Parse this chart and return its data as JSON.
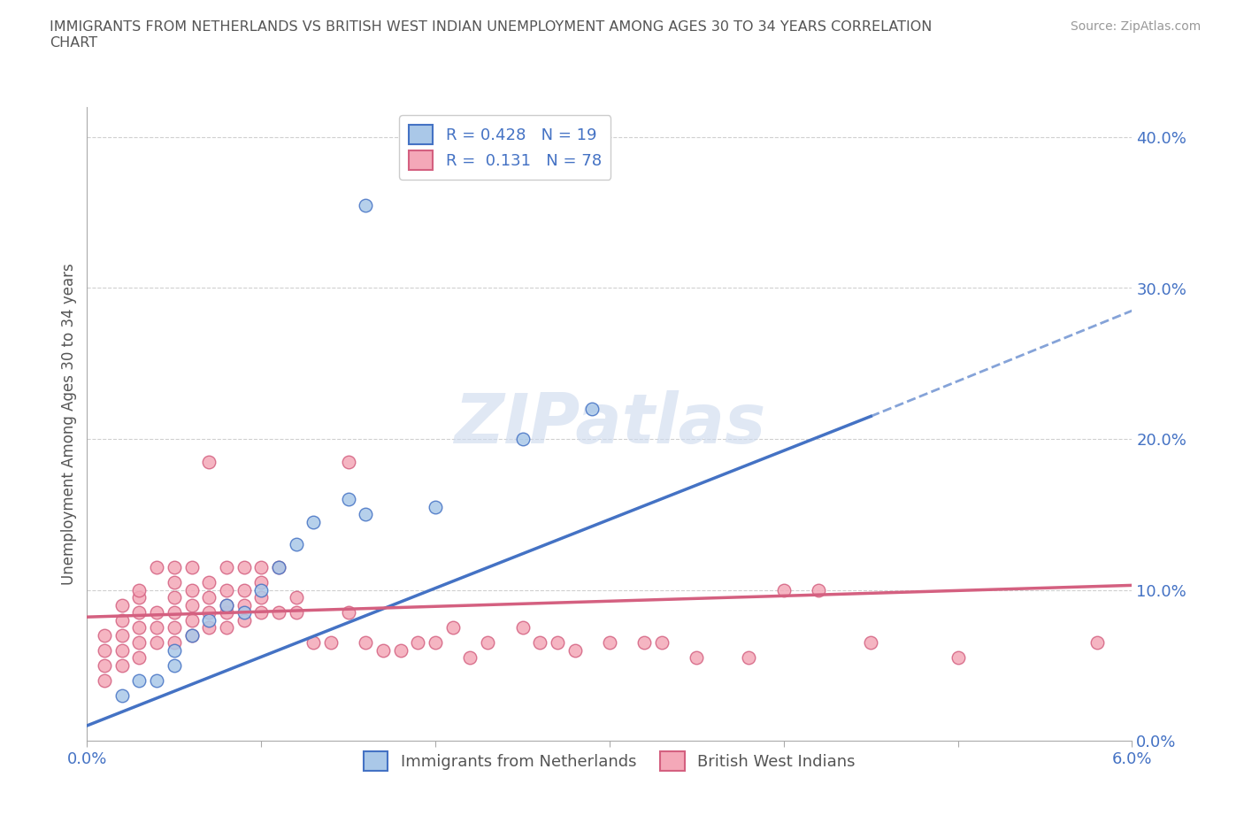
{
  "title": "IMMIGRANTS FROM NETHERLANDS VS BRITISH WEST INDIAN UNEMPLOYMENT AMONG AGES 30 TO 34 YEARS CORRELATION\nCHART",
  "source": "Source: ZipAtlas.com",
  "ylabel": "Unemployment Among Ages 30 to 34 years",
  "xlim": [
    0.0,
    0.06
  ],
  "ylim": [
    0.0,
    0.42
  ],
  "xticks": [
    0.0,
    0.01,
    0.02,
    0.03,
    0.04,
    0.05,
    0.06
  ],
  "xtick_labels": [
    "0.0%",
    "",
    "",
    "",
    "",
    "",
    "6.0%"
  ],
  "ytick_labels": [
    "0.0%",
    "10.0%",
    "20.0%",
    "30.0%",
    "40.0%"
  ],
  "yticks": [
    0.0,
    0.1,
    0.2,
    0.3,
    0.4
  ],
  "R_blue": 0.428,
  "N_blue": 19,
  "R_pink": 0.131,
  "N_pink": 78,
  "blue_color": "#aac8e8",
  "pink_color": "#f4a8b8",
  "blue_line_color": "#4472c4",
  "pink_line_color": "#d46080",
  "axis_color": "#4472c4",
  "grid_color": "#d0d0d0",
  "watermark": "ZIPatlas",
  "blue_line_x0": 0.0,
  "blue_line_y0": 0.01,
  "blue_line_x1": 0.045,
  "blue_line_y1": 0.215,
  "blue_line_solid_end": 0.045,
  "blue_line_x2": 0.06,
  "blue_line_y2": 0.285,
  "pink_line_x0": 0.0,
  "pink_line_y0": 0.082,
  "pink_line_x1": 0.06,
  "pink_line_y1": 0.103,
  "blue_scatter_x": [
    0.002,
    0.003,
    0.004,
    0.005,
    0.005,
    0.006,
    0.007,
    0.008,
    0.009,
    0.01,
    0.011,
    0.012,
    0.013,
    0.015,
    0.016,
    0.02,
    0.025,
    0.029,
    0.016
  ],
  "blue_scatter_y": [
    0.03,
    0.04,
    0.04,
    0.05,
    0.06,
    0.07,
    0.08,
    0.09,
    0.085,
    0.1,
    0.115,
    0.13,
    0.145,
    0.16,
    0.15,
    0.155,
    0.2,
    0.22,
    0.355
  ],
  "pink_scatter_x": [
    0.001,
    0.001,
    0.001,
    0.001,
    0.002,
    0.002,
    0.002,
    0.002,
    0.002,
    0.003,
    0.003,
    0.003,
    0.003,
    0.003,
    0.003,
    0.004,
    0.004,
    0.004,
    0.004,
    0.005,
    0.005,
    0.005,
    0.005,
    0.005,
    0.005,
    0.006,
    0.006,
    0.006,
    0.006,
    0.006,
    0.007,
    0.007,
    0.007,
    0.007,
    0.007,
    0.008,
    0.008,
    0.008,
    0.008,
    0.008,
    0.009,
    0.009,
    0.009,
    0.009,
    0.01,
    0.01,
    0.01,
    0.01,
    0.011,
    0.011,
    0.012,
    0.012,
    0.013,
    0.014,
    0.015,
    0.015,
    0.016,
    0.017,
    0.018,
    0.019,
    0.02,
    0.021,
    0.022,
    0.023,
    0.025,
    0.026,
    0.027,
    0.028,
    0.03,
    0.032,
    0.033,
    0.035,
    0.038,
    0.04,
    0.042,
    0.045,
    0.05,
    0.058
  ],
  "pink_scatter_y": [
    0.04,
    0.05,
    0.06,
    0.07,
    0.05,
    0.06,
    0.07,
    0.08,
    0.09,
    0.055,
    0.065,
    0.075,
    0.085,
    0.095,
    0.1,
    0.065,
    0.075,
    0.085,
    0.115,
    0.065,
    0.075,
    0.085,
    0.095,
    0.105,
    0.115,
    0.07,
    0.08,
    0.09,
    0.1,
    0.115,
    0.075,
    0.085,
    0.095,
    0.105,
    0.185,
    0.075,
    0.085,
    0.09,
    0.1,
    0.115,
    0.08,
    0.09,
    0.1,
    0.115,
    0.085,
    0.095,
    0.105,
    0.115,
    0.085,
    0.115,
    0.085,
    0.095,
    0.065,
    0.065,
    0.085,
    0.185,
    0.065,
    0.06,
    0.06,
    0.065,
    0.065,
    0.075,
    0.055,
    0.065,
    0.075,
    0.065,
    0.065,
    0.06,
    0.065,
    0.065,
    0.065,
    0.055,
    0.055,
    0.1,
    0.1,
    0.065,
    0.055,
    0.065
  ]
}
